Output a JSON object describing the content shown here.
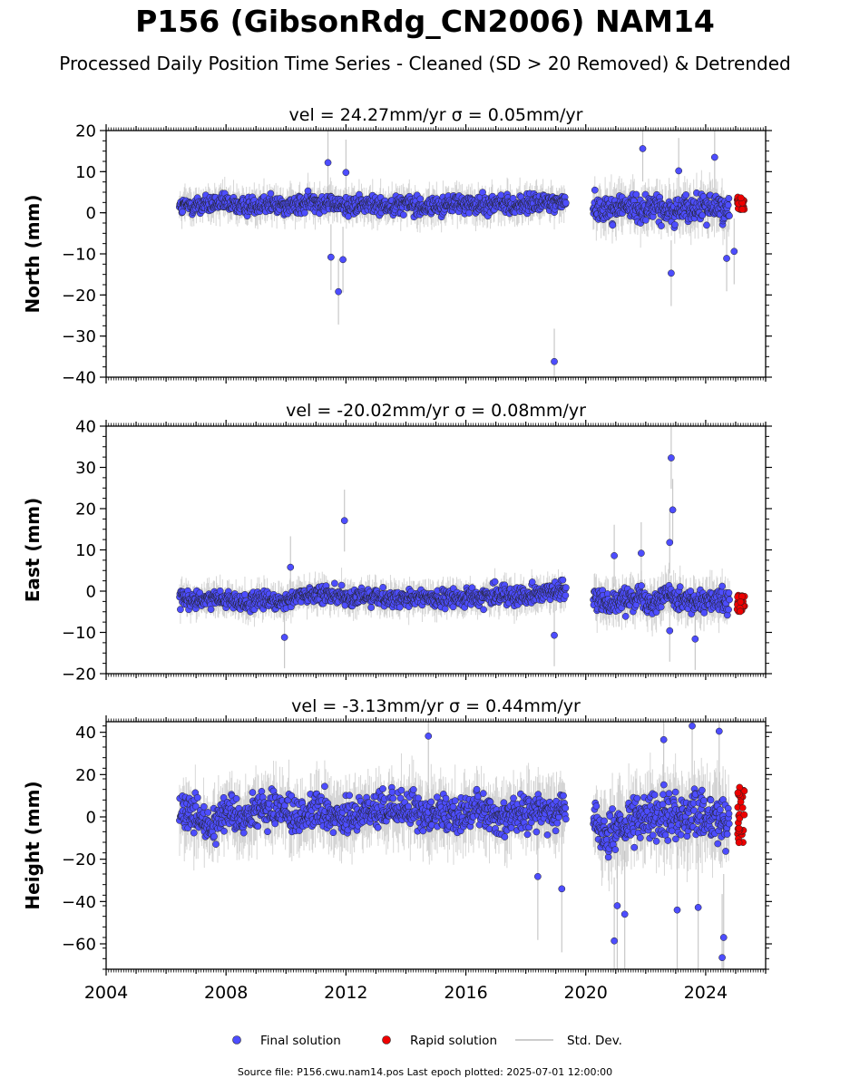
{
  "figure": {
    "title": "P156 (GibsonRdg_CN2006) NAM14",
    "subtitle": "Processed Daily Position Time Series - Cleaned (SD > 20 Removed) & Detrended",
    "footer": "Source file: P156.cwu.nam14.pos  Last epoch plotted: 2025-07-01 12:00:00"
  },
  "colors": {
    "final": "#4d4dff",
    "rapid": "#ee0000",
    "std_dev": "#bbbbbb",
    "marker_edge": "#222222"
  },
  "legend": {
    "position": "bottom-center",
    "items": [
      {
        "label": "Final solution",
        "kind": "final"
      },
      {
        "label": "Rapid solution",
        "kind": "rapid"
      },
      {
        "label": "Std. Dev.",
        "kind": "std"
      }
    ]
  },
  "chart_data": [
    {
      "type": "scatter",
      "title": "vel = 24.27mm/yr   σ = 0.05mm/yr",
      "ylabel": "North (mm)",
      "xlim": [
        2004,
        2026
      ],
      "ylim": [
        -40,
        20
      ],
      "yticks": [
        -40,
        -30,
        -20,
        -10,
        0,
        10,
        20
      ],
      "series": [
        {
          "name": "Final solution",
          "x": [
            2006.45,
            2006.9,
            2007.5,
            2008.0,
            2008.6,
            2009.2,
            2009.8,
            2010.4,
            2011.0,
            2011.6,
            2012.2,
            2012.8,
            2013.4,
            2014.0,
            2014.6,
            2015.2,
            2015.8,
            2016.4,
            2017.0,
            2017.6,
            2018.2,
            2018.8,
            2019.35,
            2020.25,
            2020.7,
            2021.2,
            2021.7,
            2022.2,
            2022.7,
            2023.2,
            2023.7,
            2024.3,
            2024.8
          ],
          "y": [
            1.2,
            1.8,
            2.0,
            2.3,
            1.5,
            2.4,
            1.9,
            1.6,
            3.0,
            2.0,
            1.6,
            2.1,
            1.7,
            2.4,
            1.3,
            1.9,
            2.2,
            1.8,
            2.3,
            1.7,
            2.1,
            2.5,
            3.0,
            1.3,
            0.5,
            1.8,
            0.9,
            1.6,
            0.2,
            1.2,
            0.6,
            1.9,
            0.4
          ]
        },
        {
          "name": "Rapid solution",
          "x": [
            2025.1,
            2025.2,
            2025.3,
            2025.4
          ],
          "y": [
            3.8,
            2.5,
            1.5,
            0.8
          ]
        }
      ],
      "outliers": [
        [
          2011.5,
          -10.8
        ],
        [
          2011.75,
          -19.2
        ],
        [
          2011.9,
          -11.4
        ],
        [
          2011.4,
          12.2
        ],
        [
          2012.0,
          9.8
        ],
        [
          2018.95,
          -36.2
        ],
        [
          2021.9,
          15.6
        ],
        [
          2022.85,
          -14.7
        ],
        [
          2024.3,
          13.5
        ],
        [
          2024.7,
          -11.1
        ],
        [
          2023.1,
          10.2
        ],
        [
          2024.95,
          -9.4
        ]
      ]
    },
    {
      "type": "scatter",
      "title": "vel = -20.02mm/yr   σ = 0.08mm/yr",
      "ylabel": "East (mm)",
      "xlim": [
        2004,
        2026
      ],
      "ylim": [
        -20,
        40
      ],
      "yticks": [
        -20,
        -10,
        0,
        10,
        20,
        30,
        40
      ],
      "series": [
        {
          "name": "Final solution",
          "x": [
            2006.45,
            2006.9,
            2007.5,
            2008.0,
            2008.6,
            2009.2,
            2009.8,
            2010.4,
            2011.0,
            2011.6,
            2012.2,
            2012.8,
            2013.4,
            2014.0,
            2014.6,
            2015.2,
            2015.8,
            2016.4,
            2017.0,
            2017.6,
            2018.2,
            2018.8,
            2019.35,
            2020.25,
            2020.7,
            2021.2,
            2021.7,
            2022.2,
            2022.7,
            2023.2,
            2023.7,
            2024.3,
            2024.8
          ],
          "y": [
            -2.0,
            -2.6,
            -1.5,
            -2.3,
            -2.9,
            -2.2,
            -2.5,
            -1.4,
            -1.0,
            -0.5,
            -2.0,
            -1.1,
            -1.8,
            -2.3,
            -1.2,
            -2.0,
            -1.5,
            -1.7,
            -0.8,
            -1.3,
            -0.6,
            -0.2,
            0.5,
            -2.0,
            -2.6,
            -2.3,
            -1.0,
            -2.9,
            -0.8,
            -1.6,
            -3.2,
            -2.1,
            -3.1
          ]
        },
        {
          "name": "Rapid solution",
          "x": [
            2025.1,
            2025.2,
            2025.3,
            2025.4
          ],
          "y": [
            -1.0,
            -2.5,
            -3.5,
            -5.0
          ]
        }
      ],
      "outliers": [
        [
          2009.95,
          -11.2
        ],
        [
          2010.15,
          5.8
        ],
        [
          2011.95,
          17.1
        ],
        [
          2018.95,
          -10.7
        ],
        [
          2022.85,
          32.3
        ],
        [
          2022.9,
          19.7
        ],
        [
          2022.8,
          11.8
        ],
        [
          2020.95,
          8.6
        ],
        [
          2021.85,
          9.2
        ],
        [
          2023.65,
          -11.6
        ],
        [
          2022.8,
          -9.6
        ]
      ]
    },
    {
      "type": "scatter",
      "title": "vel = -3.13mm/yr   σ = 0.44mm/yr",
      "ylabel": "Height (mm)",
      "xlim": [
        2004,
        2026
      ],
      "ylim": [
        -72,
        45
      ],
      "yticks": [
        -60,
        -40,
        -20,
        0,
        20,
        40
      ],
      "xticks": [
        2004,
        2008,
        2012,
        2016,
        2020,
        2024
      ],
      "series": [
        {
          "name": "Final solution",
          "x": [
            2006.45,
            2006.9,
            2007.5,
            2008.0,
            2008.6,
            2009.2,
            2009.8,
            2010.4,
            2011.0,
            2011.6,
            2012.2,
            2012.8,
            2013.4,
            2014.0,
            2014.6,
            2015.2,
            2015.8,
            2016.4,
            2017.0,
            2017.6,
            2018.2,
            2018.8,
            2019.35,
            2020.25,
            2020.7,
            2021.2,
            2021.7,
            2022.2,
            2022.7,
            2023.2,
            2023.7,
            2024.3,
            2024.8
          ],
          "y": [
            4.0,
            2.0,
            -4.0,
            3.0,
            0.0,
            5.0,
            4.0,
            0.0,
            3.0,
            0.0,
            -1.0,
            5.0,
            2.0,
            4.0,
            1.0,
            3.0,
            0.0,
            4.0,
            -1.0,
            1.0,
            2.0,
            3.0,
            4.0,
            -3.0,
            -9.0,
            -6.0,
            -2.0,
            1.0,
            0.0,
            2.0,
            1.0,
            0.0,
            -2.0
          ]
        },
        {
          "name": "Rapid solution",
          "x": [
            2025.1,
            2025.2,
            2025.3,
            2025.4
          ],
          "y": [
            14.0,
            8.0,
            2.0,
            -13.5
          ]
        }
      ],
      "outliers": [
        [
          2014.75,
          38.2
        ],
        [
          2020.95,
          -58.6
        ],
        [
          2021.05,
          -42.0
        ],
        [
          2023.55,
          43.0
        ],
        [
          2023.05,
          -44.0
        ],
        [
          2024.55,
          -66.5
        ],
        [
          2024.45,
          40.5
        ],
        [
          2022.6,
          36.5
        ],
        [
          2019.2,
          -34.0
        ],
        [
          2018.4,
          -28.2
        ],
        [
          2023.75,
          -42.8
        ],
        [
          2024.6,
          -57.0
        ],
        [
          2021.3,
          -46.0
        ]
      ]
    }
  ]
}
